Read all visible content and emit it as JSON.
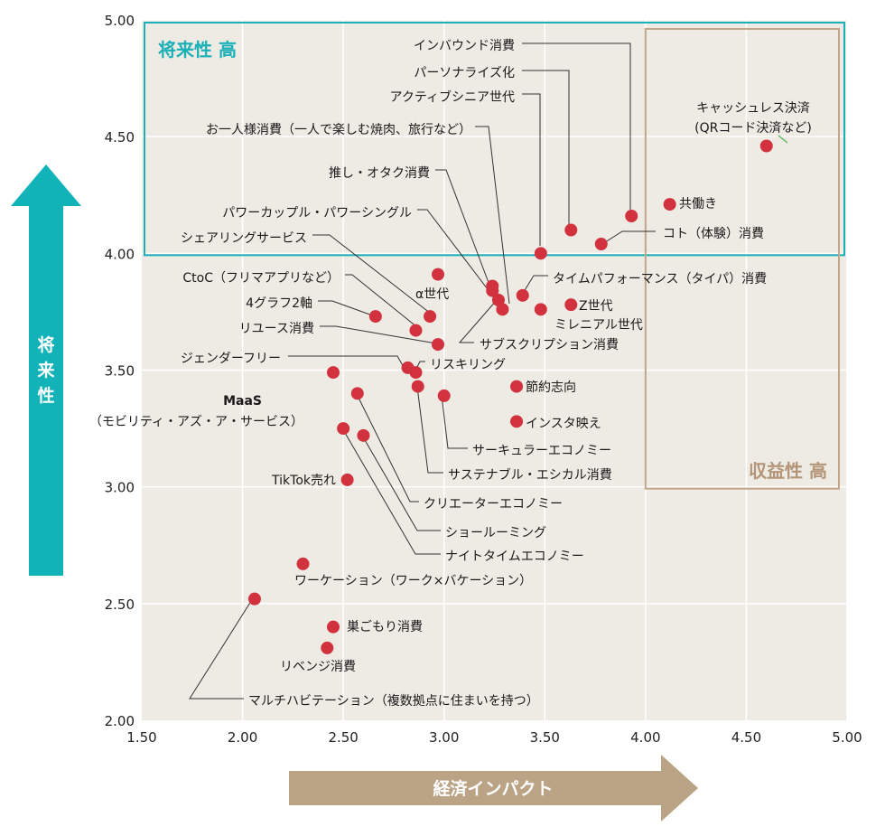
{
  "chart_data": {
    "type": "scatter",
    "xlim": [
      1.5,
      5.0
    ],
    "ylim": [
      2.0,
      5.0
    ],
    "x_ticks": [
      "1.50",
      "2.00",
      "2.50",
      "3.00",
      "3.50",
      "4.00",
      "4.50",
      "5.00"
    ],
    "y_ticks": [
      "2.00",
      "2.50",
      "3.00",
      "3.50",
      "4.00",
      "4.50",
      "5.00"
    ],
    "grid": true,
    "xlabel": "経済インパクト",
    "ylabel": "将来性",
    "zones": [
      {
        "label": "将来性 高",
        "x": [
          1.5,
          5.0
        ],
        "y": [
          4.0,
          5.0
        ],
        "color": "#1ab0b8"
      },
      {
        "label": "収益性 高",
        "x": [
          4.0,
          5.0
        ],
        "y": [
          3.0,
          5.0
        ],
        "color": "#c2a68a"
      }
    ],
    "points": [
      {
        "label": "インバウンド消費",
        "x": 3.93,
        "y": 4.16
      },
      {
        "label": "パーソナライズ化",
        "x": 3.63,
        "y": 4.1
      },
      {
        "label": "アクティブシニア世代",
        "x": 3.48,
        "y": 4.0
      },
      {
        "label": "キャッシュレス決済 (QRコード決済など)",
        "x": 4.6,
        "y": 4.46
      },
      {
        "label": "共働き",
        "x": 4.12,
        "y": 4.21
      },
      {
        "label": "コト（体験）消費",
        "x": 3.78,
        "y": 4.04
      },
      {
        "label": "お一人様消費（一人で楽しむ焼肉、旅行など）",
        "x": 3.29,
        "y": 3.76
      },
      {
        "label": "推し・オタク消費",
        "x": 3.24,
        "y": 3.84
      },
      {
        "label": "パワーカップル・パワーシングル",
        "x": 3.24,
        "y": 3.86
      },
      {
        "label": "シェアリングサービス",
        "x": 2.93,
        "y": 3.73
      },
      {
        "label": "CtoC（フリマアプリなど）",
        "x": 2.86,
        "y": 3.67
      },
      {
        "label": "4グラフ2軸",
        "x": 2.66,
        "y": 3.73
      },
      {
        "label": "リユース消費",
        "x": 2.97,
        "y": 3.61
      },
      {
        "label": "α世代",
        "x": 2.97,
        "y": 3.91
      },
      {
        "label": "タイムパフォーマンス（タイパ）消費",
        "x": 3.39,
        "y": 3.82
      },
      {
        "label": "Z世代",
        "x": 3.63,
        "y": 3.78
      },
      {
        "label": "ミレニアル世代",
        "x": 3.48,
        "y": 3.76
      },
      {
        "label": "サブスクリプション消費",
        "x": 3.27,
        "y": 3.8
      },
      {
        "label": "ジェンダーフリー",
        "x": 2.82,
        "y": 3.51
      },
      {
        "label": "リスキリング",
        "x": 2.86,
        "y": 3.49
      },
      {
        "label": "MaaS（モビリティ・アズ・ア・サービス）",
        "x": 2.45,
        "y": 3.49
      },
      {
        "label": "節約志向",
        "x": 3.36,
        "y": 3.43
      },
      {
        "label": "インスタ映え",
        "x": 3.36,
        "y": 3.28
      },
      {
        "label": "サーキュラーエコノミー",
        "x": 3.0,
        "y": 3.39
      },
      {
        "label": "サステナブル・エシカル消費",
        "x": 2.87,
        "y": 3.43
      },
      {
        "label": "クリエーターエコノミー",
        "x": 2.57,
        "y": 3.4
      },
      {
        "label": "ショールーミング",
        "x": 2.6,
        "y": 3.22
      },
      {
        "label": "ナイトタイムエコノミー",
        "x": 2.5,
        "y": 3.25
      },
      {
        "label": "TikTok売れ",
        "x": 2.52,
        "y": 3.03
      },
      {
        "label": "ワーケーション（ワーク×バケーション）",
        "x": 2.3,
        "y": 2.67
      },
      {
        "label": "マルチハビテーション（複数拠点に住まいを持つ）",
        "x": 2.06,
        "y": 2.52
      },
      {
        "label": "巣ごもり消費",
        "x": 2.45,
        "y": 2.4
      },
      {
        "label": "リベンジ消費",
        "x": 2.42,
        "y": 2.31
      }
    ],
    "colors": {
      "point": "#d1323e",
      "plot_bg": "#eeeae4",
      "grid": "#ffffff",
      "future_arrow": "#12b3b8",
      "impact_arrow": "#bba386"
    }
  }
}
